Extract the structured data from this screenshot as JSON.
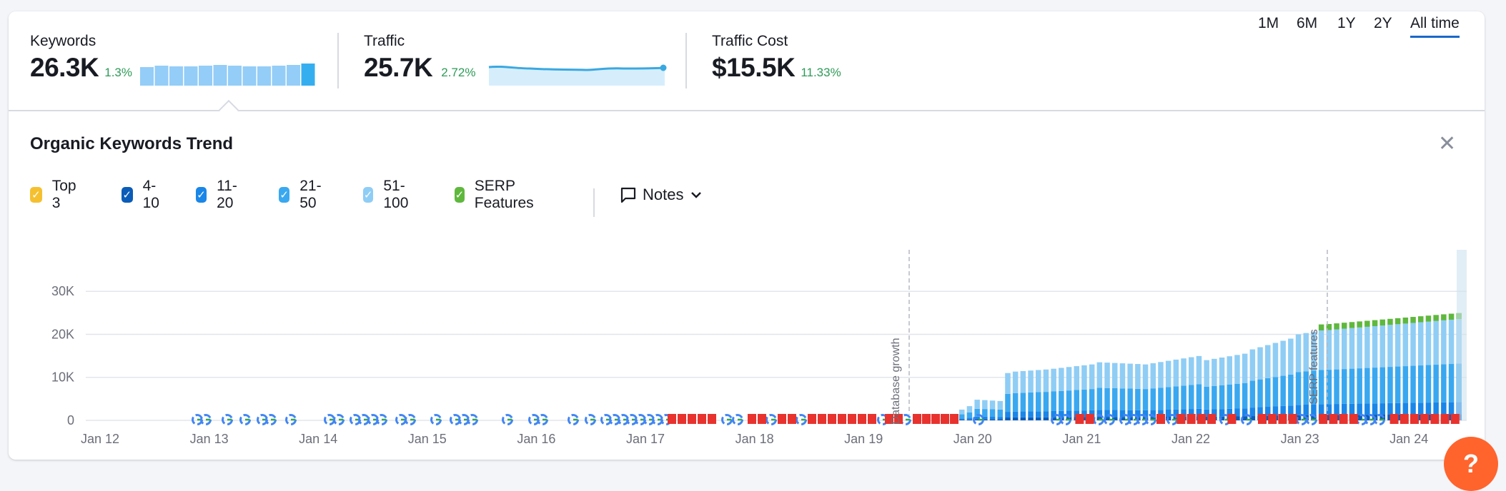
{
  "kpis": {
    "keywords": {
      "label": "Keywords",
      "value": "26.3K",
      "delta": "1.3%"
    },
    "traffic": {
      "label": "Traffic",
      "value": "25.7K",
      "delta": "2.72%"
    },
    "traffic_cost": {
      "label": "Traffic Cost",
      "value": "$15.5K",
      "delta": "11.33%"
    }
  },
  "panel": {
    "title": "Organic Keywords Trend"
  },
  "legend": [
    {
      "label": "Top 3",
      "color": "#f5c030"
    },
    {
      "label": "4-10",
      "color": "#0a5cb8"
    },
    {
      "label": "11-20",
      "color": "#1a86e8"
    },
    {
      "label": "21-50",
      "color": "#3aa8f0"
    },
    {
      "label": "51-100",
      "color": "#8fcdf5"
    },
    {
      "label": "SERP Features",
      "color": "#5fb83d"
    }
  ],
  "notes": {
    "label": "Notes"
  },
  "ranges": [
    "1M",
    "6M",
    "1Y",
    "2Y",
    "All time"
  ],
  "active_range": "All time",
  "help": {
    "label": "?"
  },
  "chart_data": {
    "type": "bar",
    "stacked": true,
    "x_ticks": [
      "Jan 12",
      "Jan 13",
      "Jan 14",
      "Jan 15",
      "Jan 16",
      "Jan 17",
      "Jan 18",
      "Jan 19",
      "Jan 20",
      "Jan 21",
      "Jan 22",
      "Jan 23",
      "Jan 24"
    ],
    "y_ticks": [
      "0",
      "10K",
      "20K",
      "30K"
    ],
    "ylim": [
      0,
      37000
    ],
    "annotations": [
      {
        "label": "Database growth",
        "x": "2019-06"
      },
      {
        "label": "SERP features",
        "x": "2023-03"
      }
    ],
    "series": [
      {
        "name": "4-10",
        "color": "#0a5cb8"
      },
      {
        "name": "11-20",
        "color": "#1a86e8"
      },
      {
        "name": "21-50",
        "color": "#3aa8f0"
      },
      {
        "name": "51-100",
        "color": "#8fcdf5"
      },
      {
        "name": "SERP Features",
        "color": "#5fb83d"
      }
    ]
  }
}
